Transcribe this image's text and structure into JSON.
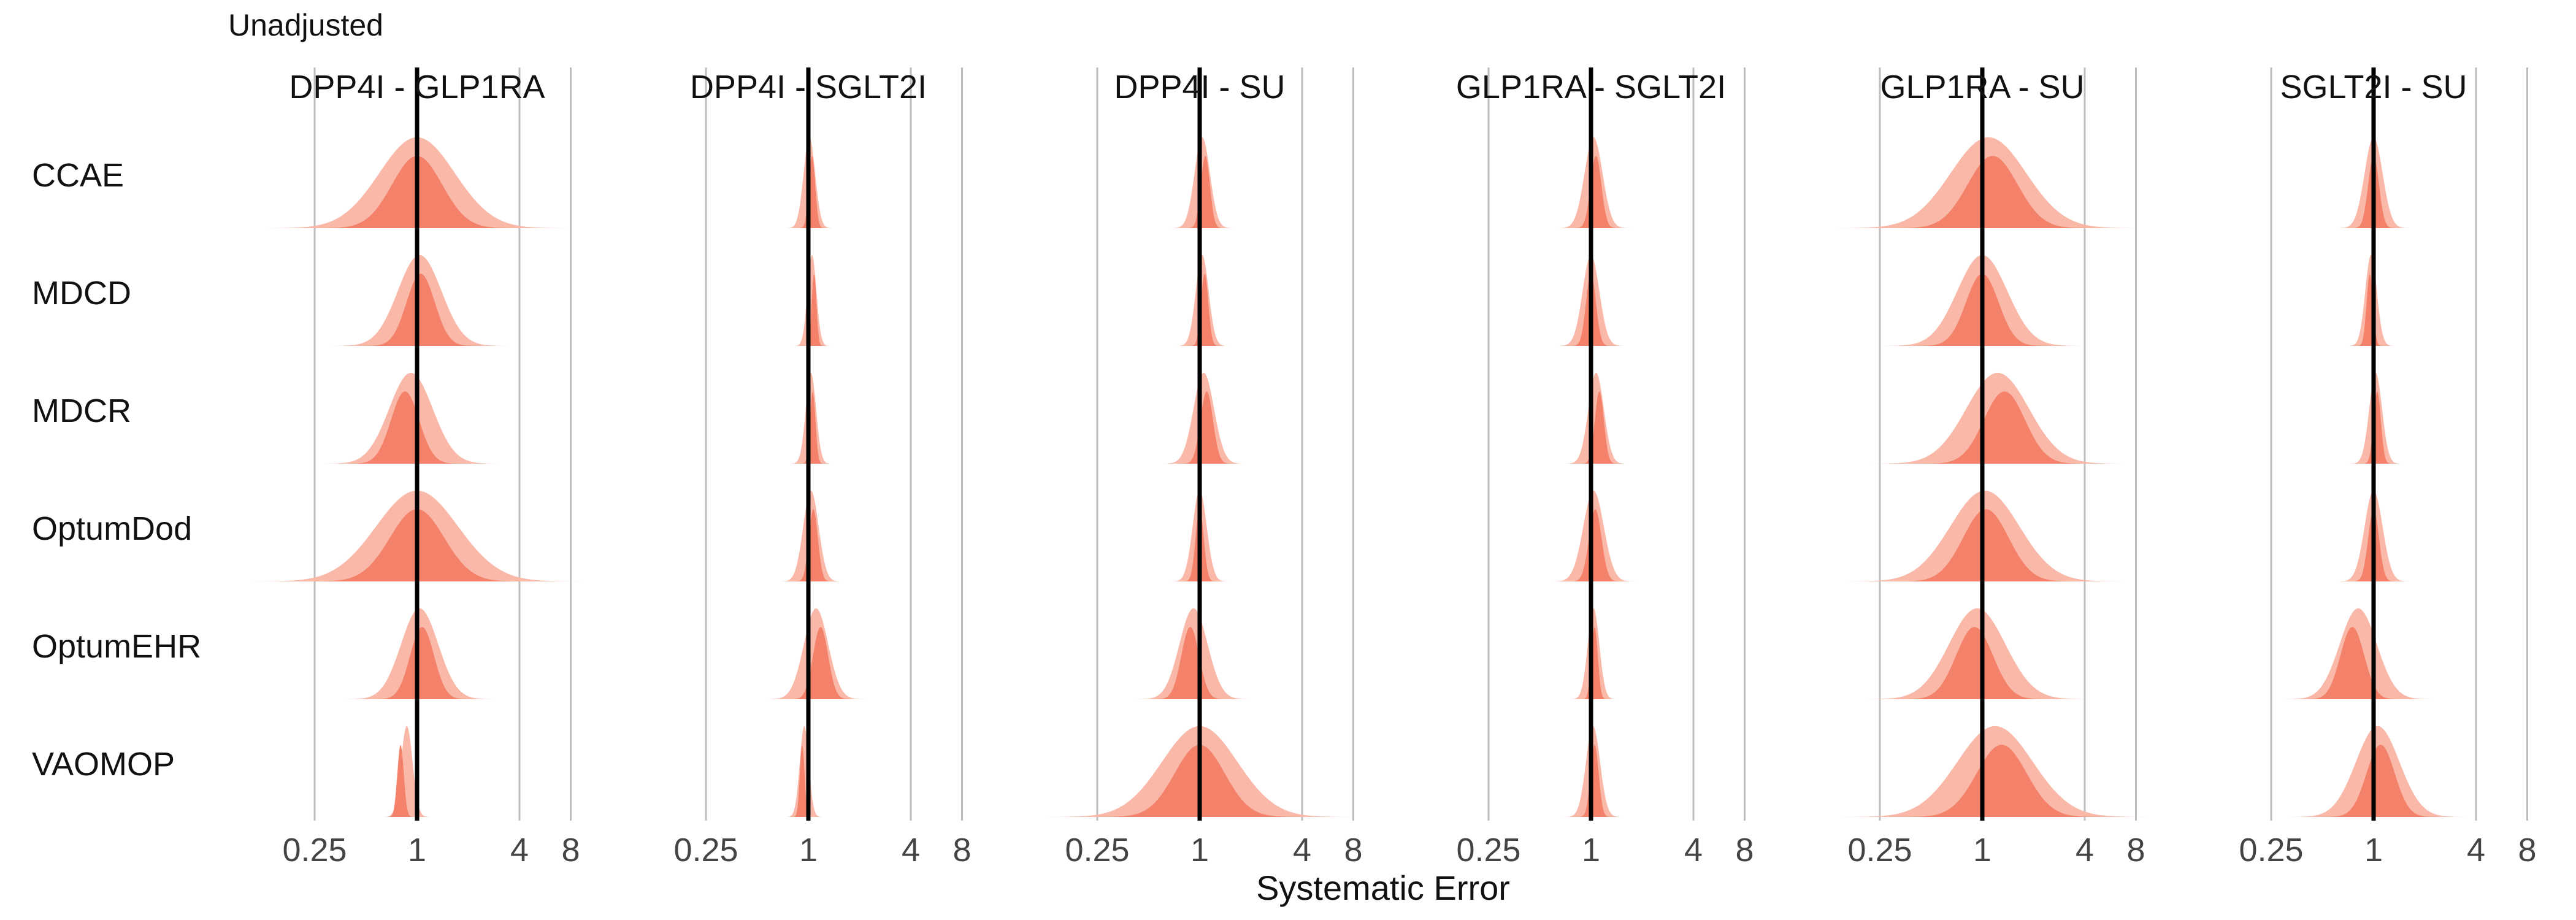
{
  "chart_data": {
    "type": "area",
    "title": "Unadjusted",
    "xlabel": "Systematic Error",
    "ylabel": "",
    "x_scale": "log",
    "x_ticks": [
      0.25,
      1,
      4,
      8
    ],
    "x_tick_labels": [
      "0.25",
      "1",
      "4",
      "8"
    ],
    "reference_line": 1,
    "grid": true,
    "colors": {
      "inner": "#f4826a",
      "outer": "#f9b8a8"
    },
    "columns": [
      "DPP4I - GLP1RA",
      "DPP4I - SGLT2I",
      "DPP4I - SU",
      "GLP1RA - SGLT2I",
      "GLP1RA - SU",
      "SGLT2I - SU"
    ],
    "rows": [
      "CCAE",
      "MDCD",
      "MDCR",
      "OptumDod",
      "OptumEHR",
      "VAOMOP"
    ],
    "distributions": [
      [
        {
          "mean": 0.0,
          "sd": 0.55,
          "peak_x": 1.0
        },
        {
          "mean": 0.02,
          "sd": 0.05,
          "peak_x": 1.05
        },
        {
          "mean": 0.05,
          "sd": 0.08,
          "peak_x": 1.08
        },
        {
          "mean": 0.05,
          "sd": 0.1,
          "peak_x": 1.07
        },
        {
          "mean": 0.12,
          "sd": 0.55,
          "peak_x": 1.15
        },
        {
          "mean": 0.0,
          "sd": 0.1,
          "peak_x": 1.0
        }
      ],
      [
        {
          "mean": 0.05,
          "sd": 0.3,
          "peak_x": 1.05
        },
        {
          "mean": 0.07,
          "sd": 0.03,
          "peak_x": 1.08
        },
        {
          "mean": 0.05,
          "sd": 0.06,
          "peak_x": 1.07
        },
        {
          "mean": 0.0,
          "sd": 0.09,
          "peak_x": 1.0
        },
        {
          "mean": 0.0,
          "sd": 0.35,
          "peak_x": 1.0
        },
        {
          "mean": -0.05,
          "sd": 0.05,
          "peak_x": 0.95
        }
      ],
      [
        {
          "mean": -0.12,
          "sd": 0.3,
          "peak_x": 0.85
        },
        {
          "mean": 0.05,
          "sd": 0.04,
          "peak_x": 1.06
        },
        {
          "mean": 0.08,
          "sd": 0.12,
          "peak_x": 1.1
        },
        {
          "mean": 0.1,
          "sd": 0.08,
          "peak_x": 1.12
        },
        {
          "mean": 0.3,
          "sd": 0.45,
          "peak_x": 1.35
        },
        {
          "mean": 0.04,
          "sd": 0.06,
          "peak_x": 1.05
        }
      ],
      [
        {
          "mean": 0.0,
          "sd": 0.6,
          "peak_x": 1.0
        },
        {
          "mean": 0.05,
          "sd": 0.08,
          "peak_x": 1.07
        },
        {
          "mean": 0.0,
          "sd": 0.07,
          "peak_x": 1.0
        },
        {
          "mean": 0.05,
          "sd": 0.12,
          "peak_x": 1.06
        },
        {
          "mean": 0.05,
          "sd": 0.5,
          "peak_x": 1.05
        },
        {
          "mean": 0.0,
          "sd": 0.1,
          "peak_x": 1.0
        }
      ],
      [
        {
          "mean": 0.05,
          "sd": 0.25,
          "peak_x": 1.07
        },
        {
          "mean": 0.15,
          "sd": 0.15,
          "peak_x": 1.18
        },
        {
          "mean": -0.12,
          "sd": 0.18,
          "peak_x": 0.88
        },
        {
          "mean": 0.05,
          "sd": 0.05,
          "peak_x": 1.05
        },
        {
          "mean": -0.1,
          "sd": 0.4,
          "peak_x": 0.9
        },
        {
          "mean": -0.3,
          "sd": 0.25,
          "peak_x": 0.75
        }
      ],
      [
        {
          "mean": -0.2,
          "sd": 0.05,
          "peak_x": 0.8
        },
        {
          "mean": -0.08,
          "sd": 0.03,
          "peak_x": 0.92
        },
        {
          "mean": 0.0,
          "sd": 0.55,
          "peak_x": 1.0
        },
        {
          "mean": 0.04,
          "sd": 0.07,
          "peak_x": 1.05
        },
        {
          "mean": 0.25,
          "sd": 0.55,
          "peak_x": 1.3
        },
        {
          "mean": 0.08,
          "sd": 0.3,
          "peak_x": 1.1
        }
      ]
    ]
  }
}
